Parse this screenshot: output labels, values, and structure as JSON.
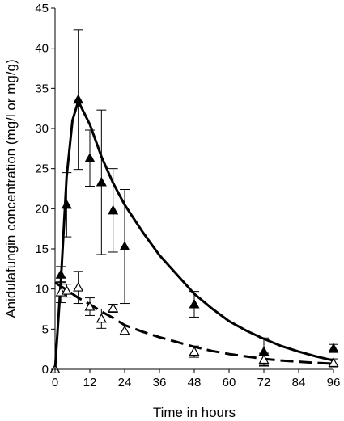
{
  "chart_data": {
    "type": "line",
    "title": "",
    "xlabel": "Time in hours",
    "ylabel": "Anidulafungin concentration (mg/l or mg/g)",
    "xlim": [
      0,
      96
    ],
    "ylim": [
      0,
      45
    ],
    "xticks": [
      0,
      12,
      24,
      36,
      48,
      60,
      72,
      84,
      96
    ],
    "yticks": [
      0,
      5,
      10,
      15,
      20,
      25,
      30,
      35,
      40,
      45
    ],
    "grid": false,
    "legend": "none",
    "series": [
      {
        "marker": "filled-triangle",
        "color": "#000000",
        "points": [
          {
            "x": 0,
            "y": 0
          },
          {
            "x": 2,
            "y": 11.8,
            "err": 1.0
          },
          {
            "x": 4,
            "y": 20.5,
            "err": 4.0
          },
          {
            "x": 8,
            "y": 33.6,
            "err": 8.7
          },
          {
            "x": 12,
            "y": 26.3,
            "err": 3.5
          },
          {
            "x": 16,
            "y": 23.3,
            "err": 9.0
          },
          {
            "x": 20,
            "y": 19.8,
            "err": 5.2
          },
          {
            "x": 24,
            "y": 15.3,
            "err": 7.1
          },
          {
            "x": 48,
            "y": 8.1,
            "err": 1.6
          },
          {
            "x": 72,
            "y": 2.2,
            "err": 1.7
          },
          {
            "x": 96,
            "y": 2.6,
            "err": 0.5
          }
        ]
      },
      {
        "marker": "open-triangle",
        "color": "#000000",
        "points": [
          {
            "x": 0,
            "y": 0
          },
          {
            "x": 2,
            "y": 9.6,
            "err": 1.3
          },
          {
            "x": 4,
            "y": 9.8,
            "err": 0.8
          },
          {
            "x": 8,
            "y": 10.2,
            "err": 2.0
          },
          {
            "x": 12,
            "y": 7.8,
            "err": 1.1
          },
          {
            "x": 16,
            "y": 6.3,
            "err": 1.2
          },
          {
            "x": 20,
            "y": 7.6,
            "err": 0.5
          },
          {
            "x": 24,
            "y": 4.8
          },
          {
            "x": 48,
            "y": 2.2,
            "err": 0.7
          },
          {
            "x": 72,
            "y": 1.2,
            "err": 0.8
          },
          {
            "x": 96,
            "y": 0.8,
            "err": 0.5
          }
        ]
      }
    ],
    "fit_lines": [
      {
        "style": "solid",
        "points": [
          [
            0,
            0
          ],
          [
            2,
            11
          ],
          [
            4,
            24
          ],
          [
            6,
            31
          ],
          [
            8,
            33.4
          ],
          [
            12,
            30.5
          ],
          [
            16,
            26.5
          ],
          [
            20,
            23.2
          ],
          [
            24,
            20.5
          ],
          [
            30,
            17.2
          ],
          [
            36,
            14.2
          ],
          [
            42,
            11.8
          ],
          [
            48,
            9.4
          ],
          [
            54,
            7.6
          ],
          [
            60,
            6.0
          ],
          [
            66,
            4.8
          ],
          [
            72,
            3.8
          ],
          [
            78,
            2.9
          ],
          [
            84,
            2.2
          ],
          [
            90,
            1.6
          ],
          [
            96,
            1.1
          ]
        ]
      },
      {
        "style": "dashed",
        "points": [
          [
            0,
            10.8
          ],
          [
            4,
            9.9
          ],
          [
            8,
            8.9
          ],
          [
            12,
            8.1
          ],
          [
            16,
            7.2
          ],
          [
            20,
            6.4
          ],
          [
            24,
            5.5
          ],
          [
            30,
            4.7
          ],
          [
            36,
            4.0
          ],
          [
            42,
            3.4
          ],
          [
            48,
            2.8
          ],
          [
            54,
            2.3
          ],
          [
            60,
            1.9
          ],
          [
            66,
            1.6
          ],
          [
            72,
            1.3
          ],
          [
            78,
            1.1
          ],
          [
            84,
            0.95
          ],
          [
            90,
            0.8
          ],
          [
            96,
            0.7
          ]
        ]
      }
    ]
  }
}
